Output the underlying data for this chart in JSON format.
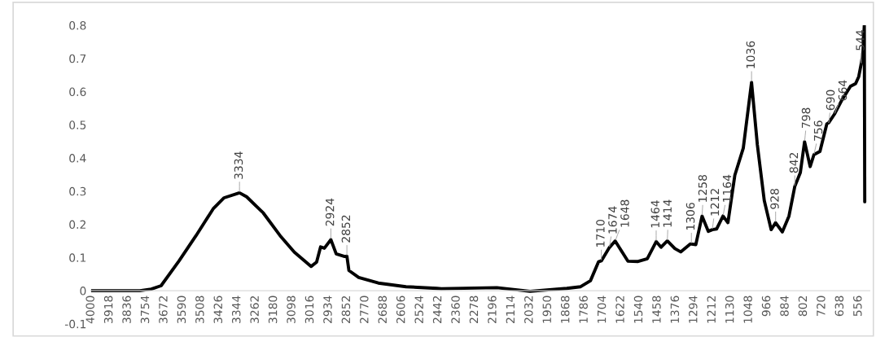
{
  "chart_data": {
    "type": "line",
    "series": [
      {
        "color": "#000000",
        "x": [
          4000,
          3781,
          3730,
          3686,
          3605,
          3529,
          3452,
          3403,
          3334,
          3302,
          3227,
          3152,
          3088,
          3013,
          2988,
          2970,
          2953,
          2924,
          2900,
          2862,
          2852,
          2843,
          2799,
          2711,
          2587,
          2448,
          2428,
          2179,
          2030,
          1865,
          1803,
          1759,
          1723,
          1710,
          1674,
          1648,
          1591,
          1545,
          1504,
          1464,
          1442,
          1414,
          1380,
          1354,
          1311,
          1286,
          1258,
          1230,
          1212,
          1193,
          1164,
          1142,
          1111,
          1073,
          1036,
          1010,
          979,
          948,
          928,
          898,
          868,
          842,
          817,
          798,
          773,
          756,
          729,
          698,
          690,
          664,
          631,
          592,
          569,
          555,
          544,
          536,
          530,
          528
        ],
        "values": [
          0,
          0,
          0.005,
          0.015,
          0.09,
          0.166,
          0.247,
          0.28,
          0.295,
          0.283,
          0.234,
          0.166,
          0.116,
          0.073,
          0.086,
          0.132,
          0.128,
          0.154,
          0.111,
          0.103,
          0.104,
          0.061,
          0.04,
          0.023,
          0.012,
          0.007,
          0.006,
          0.009,
          -0.002,
          0.007,
          0.012,
          0.03,
          0.087,
          0.09,
          0.13,
          0.15,
          0.089,
          0.088,
          0.096,
          0.148,
          0.131,
          0.15,
          0.127,
          0.117,
          0.141,
          0.139,
          0.225,
          0.179,
          0.184,
          0.186,
          0.225,
          0.205,
          0.348,
          0.43,
          0.628,
          0.44,
          0.272,
          0.184,
          0.205,
          0.177,
          0.225,
          0.314,
          0.356,
          0.449,
          0.374,
          0.41,
          0.42,
          0.503,
          0.506,
          0.532,
          0.574,
          0.616,
          0.624,
          0.645,
          0.683,
          0.717,
          0.8,
          0.268
        ]
      }
    ],
    "xlim": [
      4000,
      505
    ],
    "xticks": [
      4000,
      3918,
      3836,
      3754,
      3672,
      3590,
      3508,
      3426,
      3344,
      3262,
      3180,
      3098,
      3016,
      2934,
      2852,
      2770,
      2688,
      2606,
      2524,
      2442,
      2360,
      2278,
      2196,
      2114,
      2032,
      1950,
      1868,
      1786,
      1704,
      1622,
      1540,
      1458,
      1376,
      1294,
      1212,
      1130,
      1048,
      966,
      884,
      802,
      720,
      638,
      556
    ],
    "ylim": [
      -0.1,
      0.8
    ],
    "yticks": [
      -0.1,
      0,
      0.1,
      0.2,
      0.3,
      0.4,
      0.5,
      0.6,
      0.7,
      0.8
    ],
    "grid": false,
    "legend": false,
    "marker": "none",
    "line_style": "solid",
    "annotations": [
      {
        "text": "3334",
        "x": 3334,
        "y": 0.295
      },
      {
        "text": "2924",
        "x": 2924,
        "y": 0.154
      },
      {
        "text": "2852",
        "x": 2852,
        "y": 0.104
      },
      {
        "text": "1710",
        "x": 1710,
        "y": 0.09
      },
      {
        "text": "1674",
        "x": 1674,
        "y": 0.13
      },
      {
        "text": "1648",
        "x": 1648,
        "y": 0.15
      },
      {
        "text": "1464",
        "x": 1464,
        "y": 0.148
      },
      {
        "text": "1414",
        "x": 1414,
        "y": 0.15
      },
      {
        "text": "1306",
        "x": 1306,
        "y": 0.141
      },
      {
        "text": "1258",
        "x": 1258,
        "y": 0.225
      },
      {
        "text": "1212",
        "x": 1212,
        "y": 0.184
      },
      {
        "text": "1164",
        "x": 1164,
        "y": 0.225
      },
      {
        "text": "1036",
        "x": 1036,
        "y": 0.628
      },
      {
        "text": "928",
        "x": 928,
        "y": 0.205
      },
      {
        "text": "842",
        "x": 842,
        "y": 0.314
      },
      {
        "text": "798",
        "x": 798,
        "y": 0.449
      },
      {
        "text": "756",
        "x": 756,
        "y": 0.41
      },
      {
        "text": "690",
        "x": 690,
        "y": 0.503
      },
      {
        "text": "664",
        "x": 664,
        "y": 0.532
      },
      {
        "text": "544",
        "x": 544,
        "y": 0.683
      }
    ]
  }
}
